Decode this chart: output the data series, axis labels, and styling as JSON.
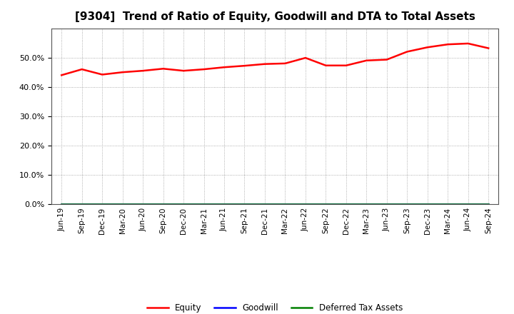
{
  "title": "[9304]  Trend of Ratio of Equity, Goodwill and DTA to Total Assets",
  "x_labels": [
    "Jun-19",
    "Sep-19",
    "Dec-19",
    "Mar-20",
    "Jun-20",
    "Sep-20",
    "Dec-20",
    "Mar-21",
    "Jun-21",
    "Sep-21",
    "Dec-21",
    "Mar-22",
    "Jun-22",
    "Sep-22",
    "Dec-22",
    "Mar-23",
    "Jun-23",
    "Sep-23",
    "Dec-23",
    "Mar-24",
    "Jun-24",
    "Sep-24"
  ],
  "equity": [
    0.44,
    0.46,
    0.442,
    0.45,
    0.455,
    0.462,
    0.455,
    0.46,
    0.467,
    0.472,
    0.478,
    0.48,
    0.499,
    0.473,
    0.473,
    0.49,
    0.493,
    0.52,
    0.535,
    0.545,
    0.548,
    0.532
  ],
  "goodwill": [
    0.0,
    0.0,
    0.0,
    0.0,
    0.0,
    0.0,
    0.0,
    0.0,
    0.0,
    0.0,
    0.0,
    0.0,
    0.0,
    0.0,
    0.0,
    0.0,
    0.0,
    0.0,
    0.0,
    0.0,
    0.0,
    0.0
  ],
  "dta": [
    0.0,
    0.0,
    0.0,
    0.0,
    0.0,
    0.0,
    0.0,
    0.0,
    0.0,
    0.0,
    0.0,
    0.0,
    0.0,
    0.0,
    0.0,
    0.0,
    0.0,
    0.0,
    0.0,
    0.0,
    0.0,
    0.0
  ],
  "equity_color": "#ff0000",
  "goodwill_color": "#0000ff",
  "dta_color": "#008000",
  "ylim": [
    0.0,
    0.6
  ],
  "yticks": [
    0.0,
    0.1,
    0.2,
    0.3,
    0.4,
    0.5
  ],
  "background_color": "#ffffff",
  "plot_bg_color": "#ffffff",
  "grid_color": "#999999",
  "title_fontsize": 11,
  "legend_labels": [
    "Equity",
    "Goodwill",
    "Deferred Tax Assets"
  ]
}
